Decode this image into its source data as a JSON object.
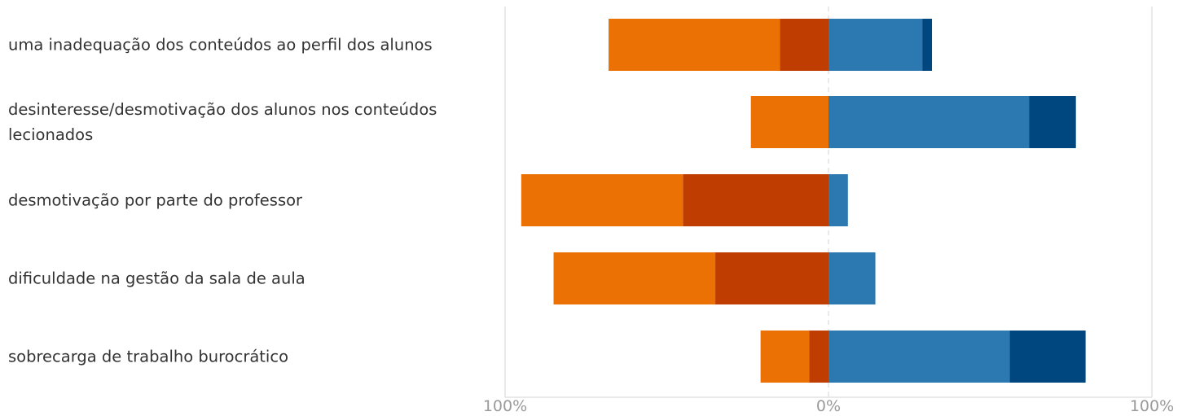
{
  "chart_data": {
    "type": "bar",
    "orientation": "horizontal",
    "stacked": "diverging",
    "categories": [
      "uma inadequação dos conteúdos ao perfil dos alunos",
      "desinteresse/desmotivação dos alunos nos conteúdos lecionados",
      "desmotivação por parte do professor",
      "dificuldade na gestão da sala de aula",
      "sobrecarga de trabalho burocrático"
    ],
    "series": [
      {
        "values": [
          -15,
          0,
          -45,
          -35,
          -6
        ],
        "color": "#BF3D00"
      },
      {
        "values": [
          -53,
          -24,
          -50,
          -50,
          -15
        ],
        "color": "#EC7105"
      },
      {
        "values": [
          29,
          62,
          6,
          14.5,
          56
        ],
        "color": "#2C78B1"
      },
      {
        "values": [
          3,
          14.5,
          0,
          0,
          23.5
        ],
        "color": "#00467F"
      }
    ],
    "xlim": [
      -100,
      100
    ],
    "x_tick_labels": [
      "100%",
      "0%",
      "100%"
    ],
    "grid": true,
    "legend": "none"
  }
}
